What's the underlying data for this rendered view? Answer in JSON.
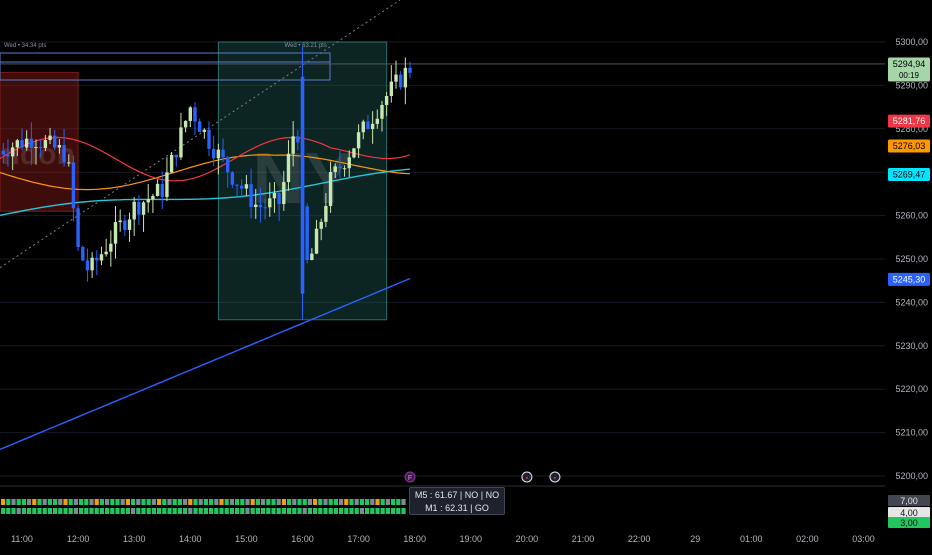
{
  "chart_data": {
    "type": "candlestick",
    "x_ticks": [
      "11:00",
      "12:00",
      "13:00",
      "14:00",
      "15:00",
      "16:00",
      "17:00",
      "18:00",
      "19:00",
      "20:00",
      "21:00",
      "22:00",
      "29",
      "01:00",
      "02:00",
      "03:00"
    ],
    "y_ticks": [
      {
        "value": 5300,
        "label": "5300,00"
      },
      {
        "value": 5290,
        "label": "5290,00"
      },
      {
        "value": 5280,
        "label": "5280,00"
      },
      {
        "value": 5270,
        "label": "5270,00"
      },
      {
        "value": 5260,
        "label": "5260,00"
      },
      {
        "value": 5250,
        "label": "5250,00"
      },
      {
        "value": 5240,
        "label": "5240,00"
      },
      {
        "value": 5230,
        "label": "5230,00"
      },
      {
        "value": 5220,
        "label": "5220,00"
      },
      {
        "value": 5210,
        "label": "5210,00"
      },
      {
        "value": 5200,
        "label": "5200,00"
      }
    ],
    "ylim": [
      5195,
      5305
    ],
    "price_badges": [
      {
        "value": 5294.94,
        "label": "5294,94",
        "sub": "00:19",
        "color": "#a5d6a7",
        "text_color": "#000000"
      },
      {
        "value": 5281.76,
        "label": "5281,76",
        "color": "#f23645",
        "text_color": "#ffffff"
      },
      {
        "value": 5276.03,
        "label": "5276,03",
        "color": "#ff9800",
        "text_color": "#000000"
      },
      {
        "value": 5269.47,
        "label": "5269,47",
        "color": "#00e5ff",
        "text_color": "#000000"
      },
      {
        "value": 5245.3,
        "label": "5245,30",
        "color": "#2962ff",
        "text_color": "#ffffff"
      }
    ],
    "session_boxes": [
      {
        "name": "red-session-box",
        "color": "#8b1a1a",
        "label": "ondon",
        "t_start": "10:15",
        "t_end": "12:00",
        "top": 5293,
        "bottom": 5261
      },
      {
        "name": "ny-session-box",
        "color": "#1f5f5a",
        "label": "NY",
        "t_start": "14:30",
        "t_end": "17:30",
        "top": 5300,
        "bottom": 5236
      }
    ],
    "range_labels": [
      {
        "text": "Wed • 34.34 pts",
        "time": "10:15"
      },
      {
        "text": "Wed • 63.21 pts",
        "time": "16:00"
      }
    ],
    "ma_series": [
      {
        "name": "red-ma",
        "color": "#f23645"
      },
      {
        "name": "orange-ma",
        "color": "#ff9800"
      },
      {
        "name": "teal-ma",
        "color": "#26c6da"
      },
      {
        "name": "blue-ma",
        "color": "#2962ff"
      }
    ],
    "lower_panel": {
      "labels": [
        "7,00",
        "4,00",
        "3,00"
      ],
      "overlay": [
        "M5 : 61.67 | NO | NO",
        "M1 : 62.31 | GO"
      ]
    },
    "event_icons": [
      {
        "name": "fed-event-icon",
        "time": "17:55",
        "glyph": "F"
      },
      {
        "name": "us-flag-event-icon",
        "time": "20:00",
        "glyph": "▪"
      },
      {
        "name": "us-flag-event-icon-2",
        "time": "20:30",
        "glyph": "▪"
      }
    ]
  }
}
